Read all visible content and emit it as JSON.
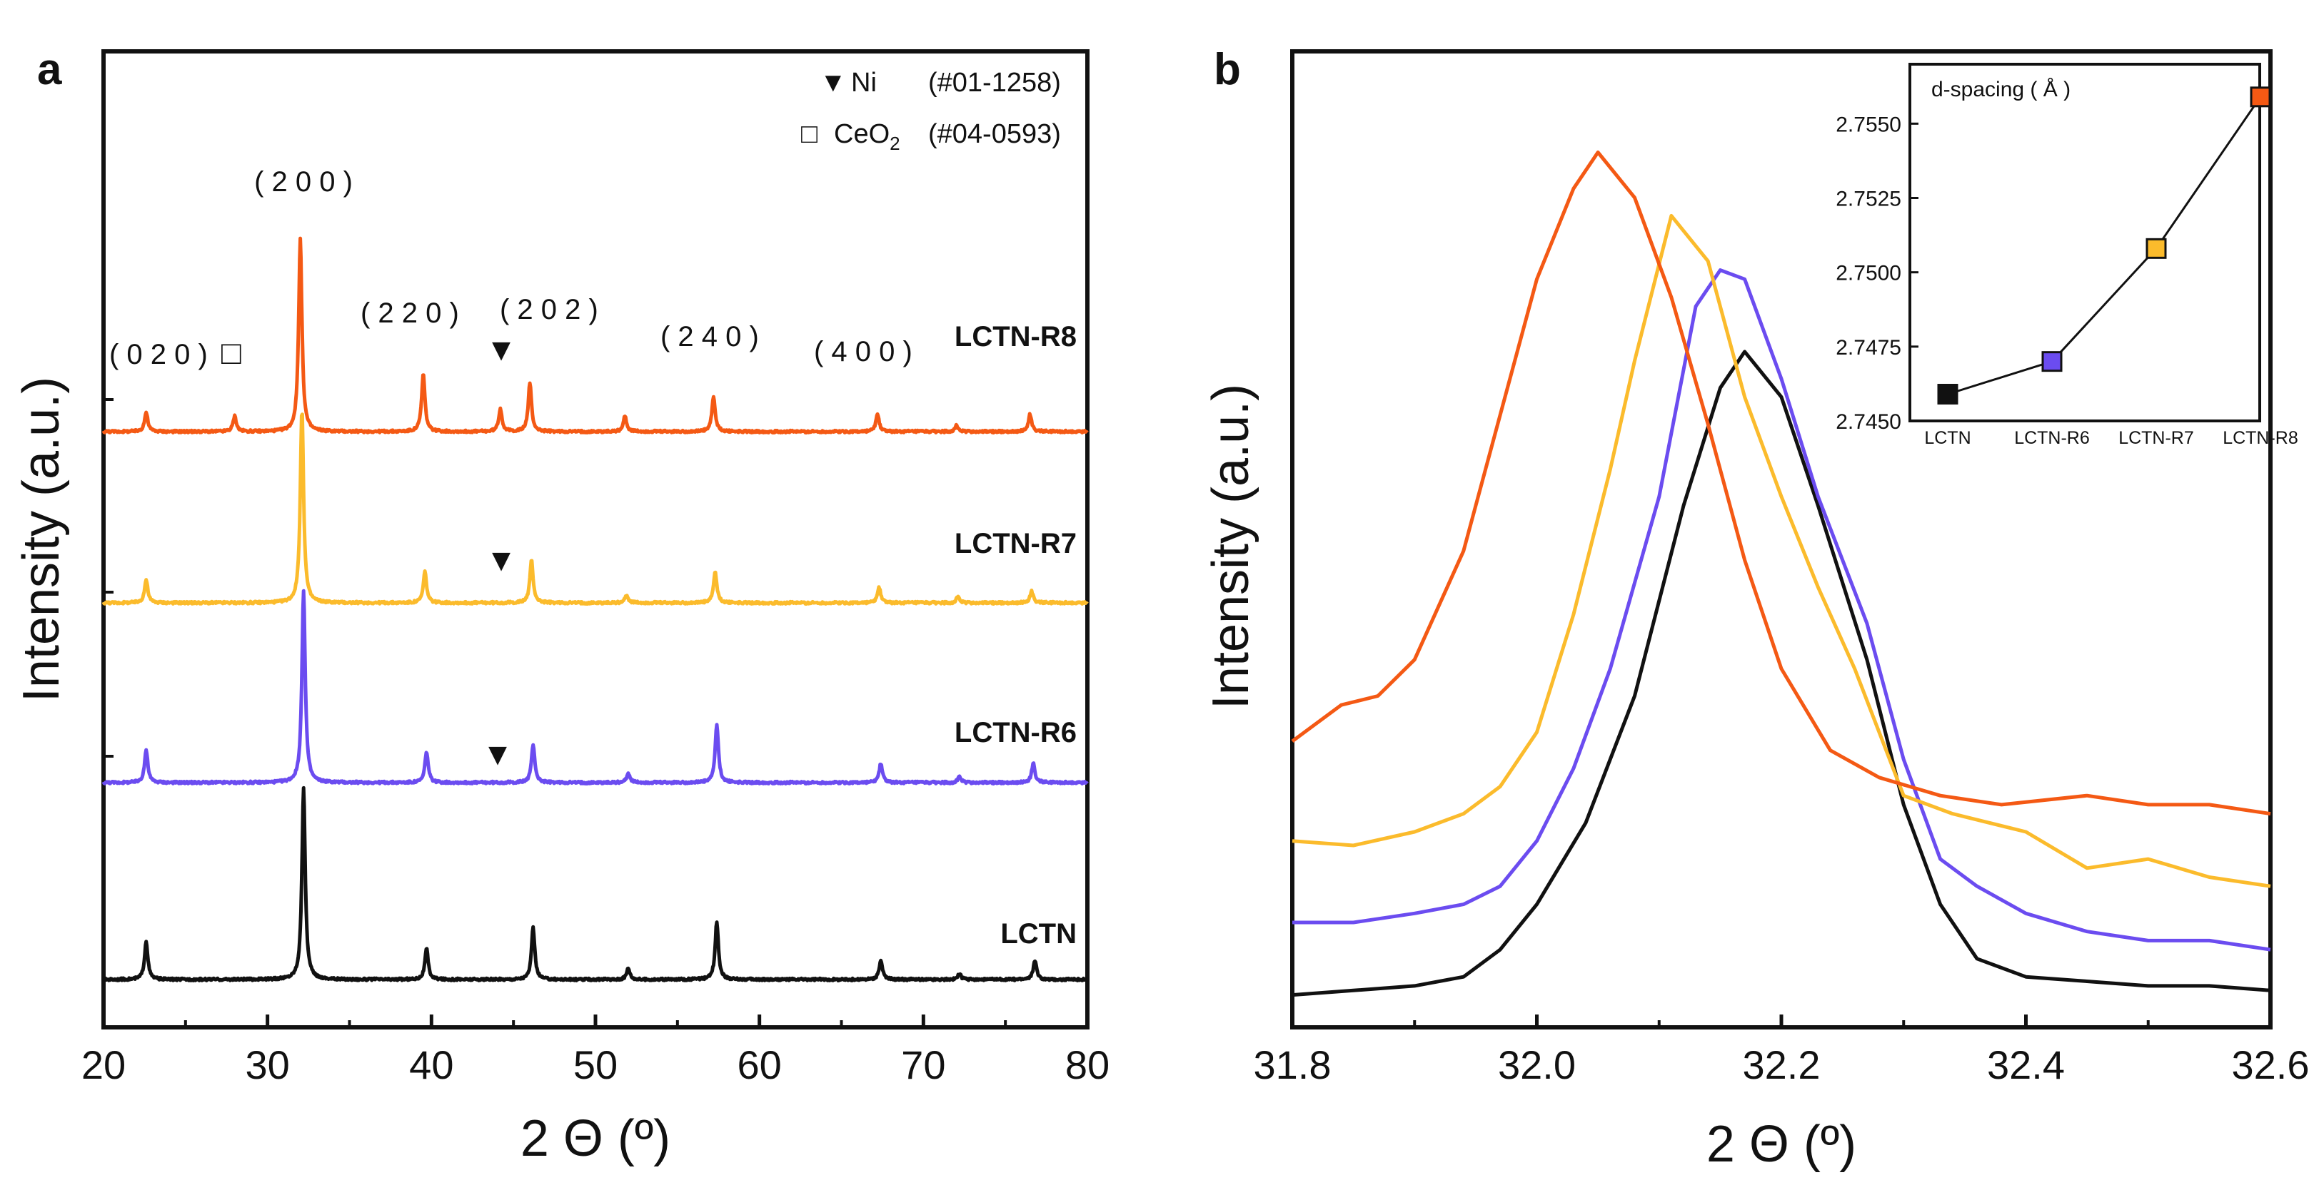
{
  "chart_data": [
    {
      "panel_label": "a",
      "type": "line",
      "title": "",
      "xlabel": "2 Θ (º)",
      "ylabel": "Intensity (a.u.)",
      "xlim": [
        20,
        80
      ],
      "xticks": [
        "20",
        "30",
        "40",
        "50",
        "60",
        "70",
        "80"
      ],
      "offsets_normalized": {
        "LCTN": 0.0,
        "LCTN-R6": 0.23,
        "LCTN-R7": 0.44,
        "LCTN-R8": 0.64
      },
      "series": [
        {
          "name": "LCTN",
          "color": "#111111",
          "peaks": [
            [
              22.6,
              0.2
            ],
            [
              32.2,
              1.0
            ],
            [
              39.7,
              0.16
            ],
            [
              46.2,
              0.27
            ],
            [
              52.0,
              0.06
            ],
            [
              57.4,
              0.3
            ],
            [
              67.4,
              0.1
            ],
            [
              72.2,
              0.03
            ],
            [
              76.8,
              0.1
            ]
          ]
        },
        {
          "name": "LCTN-R6",
          "color": "#6B4CF0",
          "peaks": [
            [
              22.6,
              0.17
            ],
            [
              32.2,
              1.0
            ],
            [
              39.7,
              0.16
            ],
            [
              46.2,
              0.2
            ],
            [
              52.0,
              0.05
            ],
            [
              57.4,
              0.3
            ],
            [
              67.4,
              0.1
            ],
            [
              72.2,
              0.03
            ],
            [
              76.7,
              0.1
            ]
          ]
        },
        {
          "name": "LCTN-R7",
          "color": "#FBBB2C",
          "peaks": [
            [
              22.6,
              0.12
            ],
            [
              32.1,
              1.0
            ],
            [
              39.6,
              0.16
            ],
            [
              46.1,
              0.22
            ],
            [
              51.9,
              0.04
            ],
            [
              57.3,
              0.16
            ],
            [
              67.3,
              0.08
            ],
            [
              72.1,
              0.03
            ],
            [
              76.6,
              0.06
            ]
          ]
        },
        {
          "name": "LCTN-R8",
          "color": "#F45914",
          "peaks": [
            [
              22.6,
              0.1
            ],
            [
              28.0,
              0.08
            ],
            [
              32.0,
              1.0
            ],
            [
              39.5,
              0.3
            ],
            [
              44.2,
              0.12
            ],
            [
              46.0,
              0.25
            ],
            [
              51.8,
              0.08
            ],
            [
              57.2,
              0.18
            ],
            [
              67.2,
              0.09
            ],
            [
              72.0,
              0.03
            ],
            [
              76.5,
              0.09
            ]
          ]
        }
      ],
      "annotations": {
        "hkl": [
          "( 0 2 0 )",
          "( 2 0 0 )",
          "( 2 2 0 )",
          "( 2 0 2 )",
          "( 2 4 0 )",
          "( 4 0 0 )"
        ],
        "ni_symbol": "▼",
        "ceo2_symbol": "□",
        "legend": {
          "ni_label": "Ni",
          "ni_ref": "(#01-1258)",
          "ceo2_label": "CeO",
          "ceo2_sub": "2",
          "ceo2_ref": "(#04-0593)"
        }
      }
    },
    {
      "panel_label": "b",
      "type": "line",
      "title": "",
      "xlabel": "2 Θ (º)",
      "ylabel": "Intensity (a.u.)",
      "xlim": [
        31.8,
        32.6
      ],
      "xticks": [
        "31.8",
        "32.0",
        "32.2",
        "32.4",
        "32.6"
      ],
      "ylim_normalized": [
        0,
        1
      ],
      "series": [
        {
          "name": "LCTN",
          "color": "#111111",
          "x": [
            31.8,
            31.85,
            31.9,
            31.94,
            31.97,
            32.0,
            32.04,
            32.08,
            32.12,
            32.15,
            32.17,
            32.2,
            32.23,
            32.27,
            32.3,
            32.33,
            32.36,
            32.4,
            32.45,
            32.5,
            32.55,
            32.6
          ],
          "y": [
            0.02,
            0.025,
            0.03,
            0.04,
            0.07,
            0.12,
            0.21,
            0.35,
            0.56,
            0.69,
            0.73,
            0.68,
            0.56,
            0.39,
            0.23,
            0.12,
            0.06,
            0.04,
            0.035,
            0.03,
            0.03,
            0.025
          ]
        },
        {
          "name": "LCTN-R6",
          "color": "#6B4CF0",
          "x": [
            31.8,
            31.85,
            31.9,
            31.94,
            31.97,
            32.0,
            32.03,
            32.06,
            32.1,
            32.13,
            32.15,
            32.17,
            32.2,
            32.23,
            32.27,
            32.3,
            32.33,
            32.36,
            32.4,
            32.45,
            32.5,
            32.55,
            32.6
          ],
          "y": [
            0.1,
            0.1,
            0.11,
            0.12,
            0.14,
            0.19,
            0.27,
            0.38,
            0.57,
            0.78,
            0.82,
            0.81,
            0.7,
            0.57,
            0.43,
            0.28,
            0.17,
            0.14,
            0.11,
            0.09,
            0.08,
            0.08,
            0.07
          ]
        },
        {
          "name": "LCTN-R7",
          "color": "#FBBB2C",
          "x": [
            31.8,
            31.85,
            31.9,
            31.94,
            31.97,
            32.0,
            32.03,
            32.06,
            32.08,
            32.11,
            32.14,
            32.17,
            32.2,
            32.23,
            32.26,
            32.3,
            32.34,
            32.4,
            32.45,
            32.5,
            32.55,
            32.6
          ],
          "y": [
            0.19,
            0.185,
            0.2,
            0.22,
            0.25,
            0.31,
            0.44,
            0.6,
            0.72,
            0.88,
            0.83,
            0.68,
            0.57,
            0.47,
            0.38,
            0.24,
            0.22,
            0.2,
            0.16,
            0.17,
            0.15,
            0.14
          ]
        },
        {
          "name": "LCTN-R8",
          "color": "#F45914",
          "x": [
            31.8,
            31.84,
            31.87,
            31.9,
            31.94,
            31.97,
            32.0,
            32.03,
            32.05,
            32.08,
            32.11,
            32.14,
            32.17,
            32.2,
            32.24,
            32.28,
            32.33,
            32.38,
            32.45,
            32.5,
            32.55,
            32.6
          ],
          "y": [
            0.3,
            0.34,
            0.35,
            0.39,
            0.51,
            0.66,
            0.81,
            0.91,
            0.95,
            0.9,
            0.79,
            0.65,
            0.5,
            0.38,
            0.29,
            0.26,
            0.24,
            0.23,
            0.24,
            0.23,
            0.23,
            0.22
          ]
        }
      ],
      "inset": {
        "type": "line",
        "title": "d-spacing ( Å )",
        "categories": [
          "LCTN",
          "LCTN-R6",
          "LCTN-R7",
          "LCTN-R8"
        ],
        "values": [
          2.7459,
          2.747,
          2.7508,
          2.7559
        ],
        "colors": [
          "#111111",
          "#6B4CF0",
          "#FBBB2C",
          "#F45914"
        ],
        "ylim": [
          2.745,
          2.757
        ],
        "yticks": [
          "2.7450",
          "2.7475",
          "2.7500",
          "2.7525",
          "2.7550"
        ]
      }
    }
  ]
}
